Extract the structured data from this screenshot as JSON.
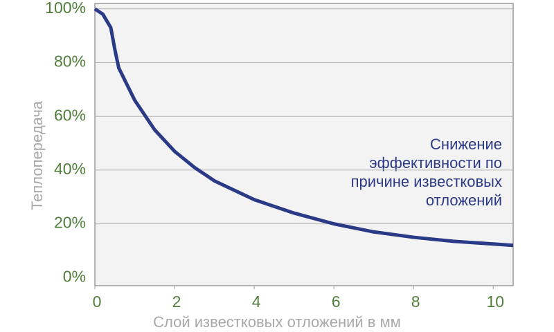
{
  "chart_data": {
    "type": "line",
    "x": [
      0,
      0.2,
      0.4,
      0.5,
      0.6,
      0.8,
      1,
      1.5,
      2,
      2.5,
      3,
      4,
      5,
      6,
      7,
      8,
      9,
      10,
      10.5
    ],
    "series": [
      {
        "color": "#2b3a87",
        "values": [
          100,
          98,
          93,
          85,
          78,
          72,
          66,
          55,
          47,
          41,
          36,
          29,
          24,
          20,
          17,
          15,
          13.5,
          12.5,
          12
        ]
      }
    ],
    "xlim": [
      0,
      10.5
    ],
    "ylim": [
      -3,
      102
    ],
    "xticks": [
      0,
      2,
      4,
      6,
      8,
      10
    ],
    "yticks": [
      {
        "value": 0,
        "label": "0%"
      },
      {
        "value": 20,
        "label": "20%"
      },
      {
        "value": 40,
        "label": "40%"
      },
      {
        "value": 60,
        "label": "60%"
      },
      {
        "value": 80,
        "label": "80%"
      },
      {
        "value": 100,
        "label": "100%"
      }
    ],
    "xlabel": "Слой известковых отложений в мм",
    "ylabel": "Теплопередача",
    "annotation": [
      "Снижение",
      "эффективности по",
      "причине известковых",
      "отложений"
    ],
    "grid": true
  }
}
